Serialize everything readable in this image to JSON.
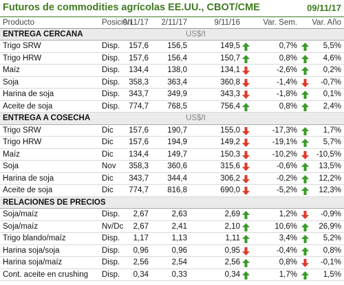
{
  "header": {
    "title": "Futuros de commodities agrícolas EE.UU., CBOT/CME",
    "date": "09/11/17"
  },
  "columns": [
    "Producto",
    "Posición",
    "9/11/17",
    "2/11/17",
    "9/11/16",
    "Var. Sem.",
    "Var. Año"
  ],
  "sections": [
    {
      "title": "ENTREGA CERCANA",
      "unit": "US$/t",
      "rows": [
        [
          "Trigo SRW",
          "Disp.",
          "157,6",
          "156,5",
          "149,5",
          "0,7%",
          "5,5%"
        ],
        [
          "Trigo HRW",
          "Disp.",
          "157,6",
          "156,4",
          "150,7",
          "0,8%",
          "4,6%"
        ],
        [
          "Maíz",
          "Disp.",
          "134,4",
          "138,0",
          "134,1",
          "-2,6%",
          "0,2%"
        ],
        [
          "Soja",
          "Disp.",
          "358,3",
          "363,4",
          "360,8",
          "-1,4%",
          "-0,7%"
        ],
        [
          "Harina de soja",
          "Disp.",
          "343,7",
          "349,9",
          "343,3",
          "-1,8%",
          "0,1%"
        ],
        [
          "Aceite de soja",
          "Disp.",
          "774,7",
          "768,5",
          "756,4",
          "0,8%",
          "2,4%"
        ]
      ]
    },
    {
      "title": "ENTREGA A COSECHA",
      "unit": "US$/t",
      "rows": [
        [
          "Trigo SRW",
          "Dic",
          "157,6",
          "190,7",
          "155,0",
          "-17,3%",
          "1,7%"
        ],
        [
          "Trigo HRW",
          "Dic",
          "157,6",
          "194,9",
          "149,2",
          "-19,1%",
          "5,7%"
        ],
        [
          "Maíz",
          "Dic",
          "134,4",
          "149,7",
          "150,3",
          "-10,2%",
          "-10,5%"
        ],
        [
          "Soja",
          "Nov",
          "358,3",
          "360,6",
          "315,6",
          "-0,6%",
          "13,5%"
        ],
        [
          "Harina de soja",
          "Dic",
          "343,7",
          "344,4",
          "306,2",
          "-0,2%",
          "12,2%"
        ],
        [
          "Aceite de soja",
          "Dic",
          "774,7",
          "816,8",
          "690,0",
          "-5,2%",
          "12,3%"
        ]
      ]
    },
    {
      "title": "RELACIONES DE PRECIOS",
      "rows": [
        [
          "Soja/maíz",
          "Disp.",
          "2,67",
          "2,63",
          "2,69",
          "1,2%",
          "-0,9%"
        ],
        [
          "Soja/maíz",
          "Nv/Dc",
          "2,67",
          "2,41",
          "2,10",
          "10,6%",
          "26,9%"
        ],
        [
          "Trigo blando/maíz",
          "Disp.",
          "1,17",
          "1,13",
          "1,11",
          "3,4%",
          "5,2%"
        ],
        [
          "Harina soja/soja",
          "Disp.",
          "0,96",
          "0,96",
          "0,95",
          "-0,4%",
          "0,8%"
        ],
        [
          "Harina soja/maíz",
          "Disp.",
          "2,56",
          "2,54",
          "2,56",
          "0,8%",
          "-0,1%"
        ],
        [
          "Cont. aceite en crushing",
          "Disp.",
          "0,34",
          "0,33",
          "0,34",
          "1,7%",
          "1,5%"
        ]
      ]
    }
  ]
}
